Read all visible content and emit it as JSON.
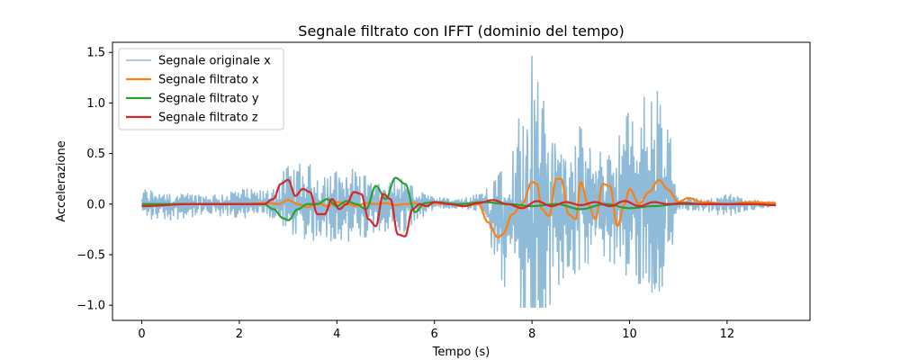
{
  "chart_data": {
    "type": "line",
    "title": "Segnale filtrato con IFFT (dominio del tempo)",
    "xlabel": "Tempo (s)",
    "ylabel": "Accelerazione",
    "xlim": [
      -0.6,
      13.7
    ],
    "ylim": [
      -1.15,
      1.6
    ],
    "xticks": [
      0,
      2,
      4,
      6,
      8,
      10,
      12
    ],
    "yticks": [
      -1.0,
      -0.5,
      0.0,
      0.5,
      1.0,
      1.5
    ],
    "xtick_labels": [
      "0",
      "2",
      "4",
      "6",
      "8",
      "10",
      "12"
    ],
    "ytick_labels": [
      "−1.0",
      "−0.5",
      "0.0",
      "0.5",
      "1.0",
      "1.5"
    ],
    "grid": false,
    "legend_position": "top-left",
    "series": [
      {
        "name": "Segnale originale x",
        "color": "#1f77b4",
        "opacity": 0.5,
        "width": 1.5,
        "style": "noisy",
        "x": [
          0,
          0.5,
          1,
          1.5,
          2,
          2.5,
          2.8,
          3,
          3.3,
          3.6,
          4,
          4.3,
          4.6,
          5,
          5.3,
          5.6,
          6,
          6.5,
          7,
          7.2,
          7.4,
          7.6,
          7.8,
          8,
          8.2,
          8.5,
          8.8,
          9,
          9.3,
          9.6,
          10,
          10.3,
          10.6,
          10.8,
          11,
          11.5,
          12,
          12.5,
          13
        ],
        "y": [
          0.13,
          0.12,
          0.1,
          0.1,
          0.12,
          0.1,
          0.18,
          0.28,
          0.3,
          0.3,
          0.28,
          0.32,
          0.3,
          0.2,
          0.25,
          0.15,
          0.05,
          0.04,
          0.08,
          0.3,
          0.45,
          0.5,
          0.9,
          1.45,
          1.0,
          0.6,
          0.5,
          0.65,
          0.4,
          0.5,
          0.7,
          0.85,
          0.85,
          0.6,
          0.05,
          0.05,
          0.1,
          0.04,
          0.02
        ]
      },
      {
        "name": "Segnale filtrato x",
        "color": "#ff7f0e",
        "width": 2.2,
        "x": [
          0,
          1,
          2,
          2.6,
          2.8,
          3.0,
          3.2,
          3.4,
          3.6,
          3.8,
          4.0,
          4.2,
          4.4,
          4.6,
          4.8,
          5.0,
          5.2,
          5.4,
          5.6,
          5.8,
          6.0,
          6.3,
          6.6,
          6.9,
          7.1,
          7.3,
          7.4,
          7.6,
          7.8,
          8.0,
          8.1,
          8.2,
          8.35,
          8.5,
          8.6,
          8.75,
          8.9,
          9.0,
          9.15,
          9.3,
          9.45,
          9.6,
          9.75,
          9.9,
          10.0,
          10.2,
          10.4,
          10.6,
          10.8,
          11.0,
          11.2,
          11.5,
          12,
          12.5,
          13
        ],
        "y": [
          -0.01,
          0.0,
          0.0,
          0.01,
          0.0,
          0.04,
          0.0,
          -0.03,
          0.01,
          -0.02,
          0.02,
          0.0,
          -0.02,
          0.01,
          0.0,
          0.01,
          -0.01,
          0.0,
          0.01,
          -0.02,
          0.01,
          0.0,
          -0.02,
          0.0,
          -0.18,
          -0.33,
          -0.3,
          -0.1,
          0.0,
          0.22,
          0.2,
          -0.05,
          -0.12,
          0.25,
          0.25,
          -0.1,
          -0.15,
          0.22,
          0.0,
          -0.15,
          0.2,
          0.18,
          -0.22,
          0.0,
          0.15,
          0.0,
          0.12,
          0.24,
          0.14,
          0.02,
          0.06,
          0.02,
          0.0,
          0.02,
          0.01
        ]
      },
      {
        "name": "Segnale filtrato y",
        "color": "#2ca02c",
        "width": 2.2,
        "x": [
          0,
          1,
          2,
          2.5,
          2.7,
          2.9,
          3.0,
          3.2,
          3.4,
          3.6,
          3.8,
          4.0,
          4.2,
          4.4,
          4.6,
          4.8,
          5.0,
          5.2,
          5.4,
          5.6,
          5.8,
          6.0,
          6.5,
          7.0,
          7.5,
          8.0,
          8.5,
          9.0,
          9.5,
          10.0,
          10.5,
          11.0,
          11.5,
          12,
          12.5,
          13
        ],
        "y": [
          0.0,
          0.0,
          0.0,
          0.0,
          -0.05,
          -0.14,
          -0.16,
          -0.05,
          0.0,
          0.0,
          0.05,
          -0.02,
          0.03,
          0.0,
          -0.05,
          0.18,
          0.05,
          0.26,
          0.2,
          -0.08,
          0.01,
          0.02,
          0.0,
          0.02,
          0.0,
          -0.02,
          0.0,
          -0.05,
          0.0,
          -0.04,
          -0.02,
          0.0,
          0.0,
          0.0,
          0.0,
          -0.01
        ]
      },
      {
        "name": "Segnale filtrato z",
        "color": "#d62728",
        "width": 2.2,
        "x": [
          0,
          1,
          2,
          2.5,
          2.7,
          2.85,
          3.0,
          3.15,
          3.3,
          3.45,
          3.6,
          3.75,
          3.9,
          4.05,
          4.2,
          4.35,
          4.5,
          4.65,
          4.8,
          4.95,
          5.1,
          5.25,
          5.4,
          5.55,
          5.7,
          5.85,
          6.0,
          6.3,
          6.6,
          6.9,
          7.2,
          7.5,
          7.8,
          8.1,
          8.4,
          8.7,
          9.0,
          9.3,
          9.6,
          9.9,
          10.2,
          10.5,
          10.8,
          11.1,
          11.5,
          12,
          12.5,
          13
        ],
        "y": [
          -0.02,
          0.0,
          0.0,
          0.0,
          0.05,
          0.2,
          0.24,
          0.08,
          0.15,
          0.12,
          -0.1,
          -0.1,
          0.05,
          -0.05,
          0.0,
          0.12,
          0.1,
          -0.15,
          -0.22,
          0.1,
          0.05,
          -0.3,
          -0.32,
          -0.05,
          0.0,
          -0.02,
          0.02,
          0.0,
          -0.02,
          0.01,
          0.04,
          0.0,
          -0.04,
          0.03,
          -0.02,
          0.02,
          -0.01,
          0.02,
          -0.02,
          0.03,
          -0.02,
          0.02,
          0.0,
          0.01,
          0.0,
          0.0,
          0.0,
          -0.01
        ]
      }
    ]
  }
}
